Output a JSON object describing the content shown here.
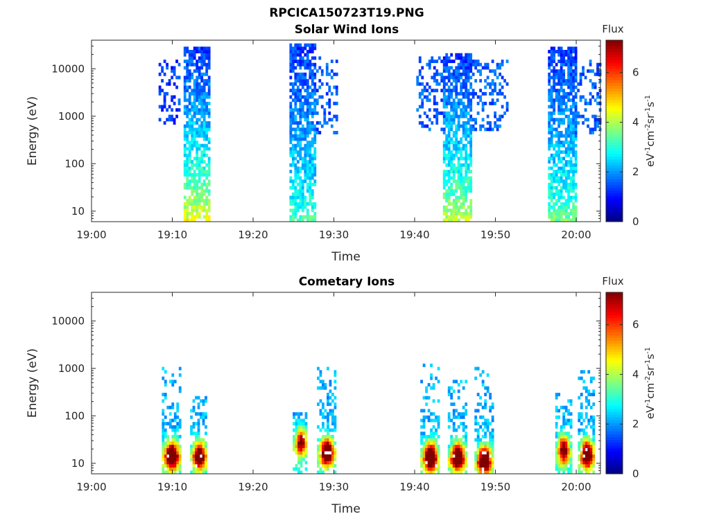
{
  "figure": {
    "title": "RPCICA150723T19.PNG"
  },
  "chart_data": [
    {
      "type": "heatmap",
      "title": "Solar Wind Ions",
      "xlabel": "Time",
      "ylabel": "Energy (eV)",
      "xticks": [
        "19:00",
        "19:10",
        "19:20",
        "19:30",
        "19:40",
        "19:50",
        "20:00"
      ],
      "xlim_minutes": [
        0,
        63
      ],
      "ylim": [
        6,
        40000
      ],
      "yscale": "log",
      "yticks": [
        10,
        100,
        1000,
        10000
      ],
      "ytick_labels": [
        "10",
        "100",
        "1000",
        "10000"
      ],
      "colorbar": {
        "label": "Flux",
        "units": "eV-1cm-2sr-1s-1",
        "range": [
          0,
          7.3
        ],
        "ticks": [
          "0",
          "2",
          "4",
          "6"
        ],
        "colormap": "jet"
      },
      "bursts": [
        {
          "t_start_min": 8.3,
          "t_end_min": 10.8,
          "e_min": 700,
          "e_max": 15000,
          "flux": 1.3,
          "density": 0.35
        },
        {
          "t_start_min": 11.4,
          "t_end_min": 14.5,
          "e_min": 6,
          "e_max": 30000,
          "flux_low_energy": 4.8,
          "flux_high_energy": 1.3,
          "density": 0.75
        },
        {
          "t_start_min": 24.5,
          "t_end_min": 27.8,
          "e_min": 6,
          "e_max": 35000,
          "flux_low_energy": 3.5,
          "flux_high_energy": 1.3,
          "density": 0.75
        },
        {
          "t_start_min": 27.8,
          "t_end_min": 30.5,
          "e_min": 400,
          "e_max": 18000,
          "flux": 1.5,
          "density": 0.3
        },
        {
          "t_start_min": 40.2,
          "t_end_min": 43.5,
          "e_min": 500,
          "e_max": 18000,
          "flux": 1.5,
          "density": 0.35
        },
        {
          "t_start_min": 43.5,
          "t_end_min": 46.8,
          "e_min": 6,
          "e_max": 22000,
          "flux_low_energy": 4.5,
          "flux_high_energy": 1.3,
          "density": 0.75
        },
        {
          "t_start_min": 46.8,
          "t_end_min": 51.5,
          "e_min": 500,
          "e_max": 16000,
          "flux": 1.6,
          "density": 0.3
        },
        {
          "t_start_min": 56.5,
          "t_end_min": 59.8,
          "e_min": 6,
          "e_max": 30000,
          "flux_low_energy": 3.8,
          "flux_high_energy": 1.3,
          "density": 0.75
        },
        {
          "t_start_min": 59.8,
          "t_end_min": 63,
          "e_min": 400,
          "e_max": 15000,
          "flux": 1.6,
          "density": 0.3
        }
      ]
    },
    {
      "type": "heatmap",
      "title": "Cometary Ions",
      "xlabel": "Time",
      "ylabel": "Energy (eV)",
      "xticks": [
        "19:00",
        "19:10",
        "19:20",
        "19:30",
        "19:40",
        "19:50",
        "20:00"
      ],
      "xlim_minutes": [
        0,
        63
      ],
      "ylim": [
        6,
        40000
      ],
      "yscale": "log",
      "yticks": [
        10,
        100,
        1000,
        10000
      ],
      "ytick_labels": [
        "10",
        "100",
        "1000",
        "10000"
      ],
      "colorbar": {
        "label": "Flux",
        "units": "eV-1cm-2sr-1s-1",
        "range": [
          0,
          7.3
        ],
        "ticks": [
          "0",
          "2",
          "4",
          "6"
        ],
        "colormap": "jet"
      },
      "bursts": [
        {
          "t_center_min": 9.8,
          "t_width_min": 2.2,
          "e_peak": 15,
          "peak_flux": 7.0,
          "upper_tail_eV": 1000
        },
        {
          "t_center_min": 13.2,
          "t_width_min": 2.0,
          "e_peak": 15,
          "peak_flux": 6.5,
          "upper_tail_eV": 300
        },
        {
          "t_center_min": 25.8,
          "t_width_min": 1.8,
          "e_peak": 30,
          "peak_flux": 5.0,
          "upper_tail_eV": 120
        },
        {
          "t_center_min": 29.0,
          "t_width_min": 2.2,
          "e_peak": 18,
          "peak_flux": 6.8,
          "upper_tail_eV": 1100
        },
        {
          "t_center_min": 41.8,
          "t_width_min": 2.2,
          "e_peak": 14,
          "peak_flux": 7.2,
          "upper_tail_eV": 1200
        },
        {
          "t_center_min": 45.2,
          "t_width_min": 2.2,
          "e_peak": 14,
          "peak_flux": 7.0,
          "upper_tail_eV": 700
        },
        {
          "t_center_min": 48.5,
          "t_width_min": 2.2,
          "e_peak": 12,
          "peak_flux": 7.2,
          "upper_tail_eV": 1000
        },
        {
          "t_center_min": 58.3,
          "t_width_min": 1.8,
          "e_peak": 20,
          "peak_flux": 5.5,
          "upper_tail_eV": 300
        },
        {
          "t_center_min": 61.2,
          "t_width_min": 2.0,
          "e_peak": 16,
          "peak_flux": 6.6,
          "upper_tail_eV": 900
        }
      ]
    }
  ]
}
